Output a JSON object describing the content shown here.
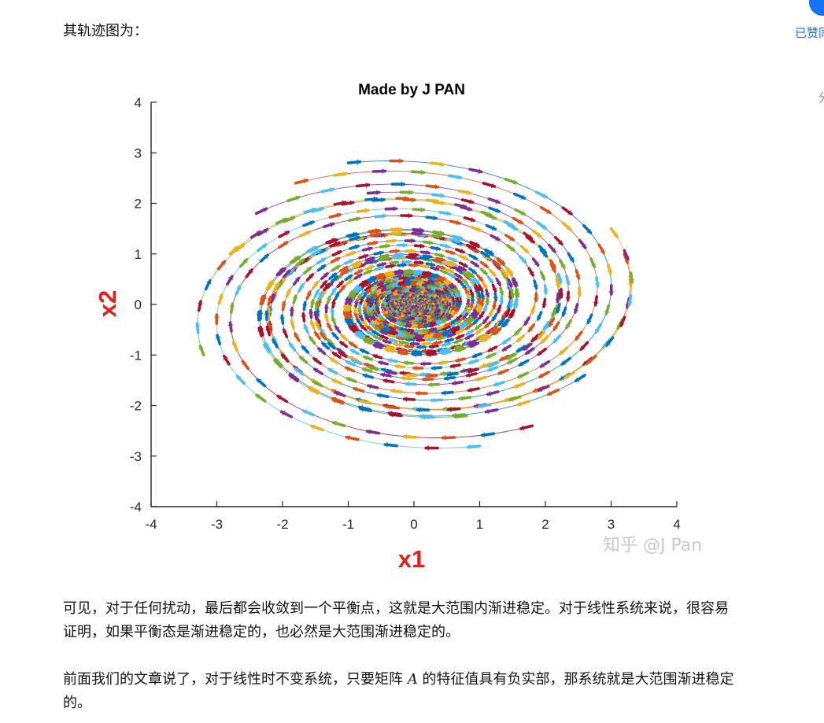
{
  "article": {
    "intro": "其轨迹图为：",
    "para1": "可见，对于任何扰动，最后都会收敛到一个平衡点，这就是大范围内渐进稳定。对于线性系统来说，很容易证明，如果平衡态是渐进稳定的，也必然是大范围渐进稳定的。",
    "para2_part1": "前面我们的文章说了，对于线性时不变系统，只要矩阵 ",
    "para2_var": "A",
    "para2_part2": " 的特征值具有负实部，那系统就是大范围渐进稳定的。"
  },
  "sidebar": {
    "liked_label": "已赞同",
    "share_label": "分享"
  },
  "figure": {
    "watermark": "知乎 @J Pan",
    "colors": [
      "#0072BD",
      "#D95319",
      "#EDB120",
      "#7E2F8E",
      "#77AC30",
      "#4DBEEE",
      "#A2142F"
    ],
    "title_color": "#000000",
    "label_color": "#e0201c"
  },
  "chart_data": {
    "type": "line",
    "title": "Made by J PAN",
    "xlabel": "x1",
    "ylabel": "x2",
    "xlim": [
      -4,
      4
    ],
    "ylim": [
      -4,
      4
    ],
    "xticks": [
      "-4",
      "-3",
      "-2",
      "-1",
      "0",
      "1",
      "2",
      "3",
      "4"
    ],
    "yticks": [
      "4",
      "3",
      "2",
      "1",
      "0",
      "-1",
      "-2",
      "-3",
      "-4"
    ],
    "grid": false,
    "equilibrium": [
      0,
      0
    ],
    "series": [
      {
        "start": [
          -1.0,
          2.8
        ]
      },
      {
        "start": [
          -1.8,
          2.4
        ]
      },
      {
        "start": [
          -2.8,
          1.0
        ]
      },
      {
        "start": [
          -2.4,
          1.8
        ]
      },
      {
        "start": [
          -3.2,
          -1.0
        ]
      },
      {
        "start": [
          1.0,
          -2.8
        ]
      },
      {
        "start": [
          1.8,
          -2.4
        ]
      },
      {
        "start": [
          2.6,
          -1.4
        ]
      },
      {
        "start": [
          3.2,
          1.0
        ]
      },
      {
        "start": [
          3.0,
          1.5
        ]
      },
      {
        "start": [
          -0.7,
          2.2
        ]
      },
      {
        "start": [
          0.8,
          -2.2
        ]
      },
      {
        "start": [
          2.2,
          0.6
        ]
      },
      {
        "start": [
          -2.2,
          -0.6
        ]
      }
    ]
  }
}
